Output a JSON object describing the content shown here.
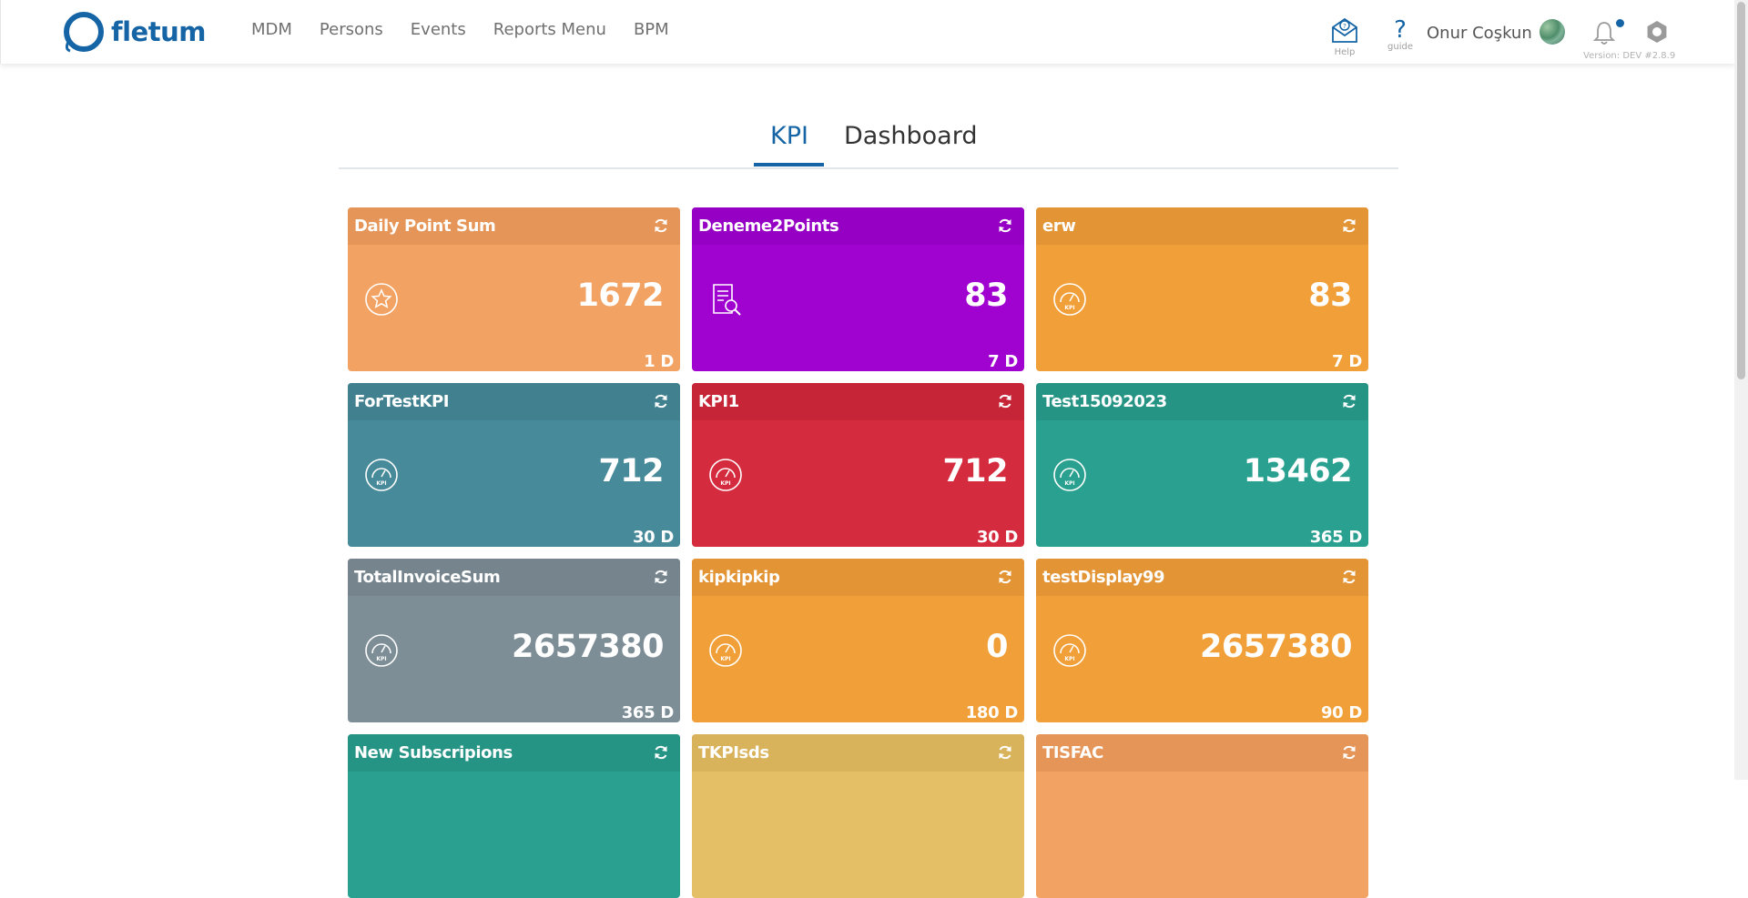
{
  "app": {
    "logo_text": "fletum"
  },
  "menu": [
    {
      "label": "MDM"
    },
    {
      "label": "Persons"
    },
    {
      "label": "Events"
    },
    {
      "label": "Reports Menu"
    },
    {
      "label": "BPM"
    }
  ],
  "tools": {
    "help_caption": "Help",
    "guide_glyph": "?",
    "guide_caption": "guide",
    "user_name": "Onur Coşkun",
    "version": "Version: DEV #2.8.9",
    "icons": [
      "mail-help-icon",
      "question-icon",
      "avatar",
      "bell-icon",
      "settings-icon"
    ],
    "notification_dot_color": "#1565a6"
  },
  "tabs": [
    {
      "label": "KPI",
      "active": true
    },
    {
      "label": "Dashboard",
      "active": false
    }
  ],
  "accent_color": "#1565a6",
  "cards": [
    {
      "title": "Daily Point Sum",
      "value": "1672",
      "period": "1 D",
      "color": "#f2a262",
      "icon": "star-icon"
    },
    {
      "title": "Deneme2Points",
      "value": "83",
      "period": "7 D",
      "color": "#a003d0",
      "icon": "document-search-icon"
    },
    {
      "title": "erw",
      "value": "83",
      "period": "7 D",
      "color": "#f1a039",
      "icon": "kpi-gauge-icon"
    },
    {
      "title": "ForTestKPI",
      "value": "712",
      "period": "30 D",
      "color": "#478a9a",
      "icon": "kpi-gauge-icon"
    },
    {
      "title": "KPI1",
      "value": "712",
      "period": "30 D",
      "color": "#d42b3e",
      "icon": "kpi-gauge-icon"
    },
    {
      "title": "Test15092023",
      "value": "13462",
      "period": "365 D",
      "color": "#2aa190",
      "icon": "kpi-gauge-icon"
    },
    {
      "title": "TotalInvoiceSum",
      "value": "2657380",
      "period": "365 D",
      "color": "#7e8e97",
      "icon": "kpi-gauge-icon"
    },
    {
      "title": "kipkipkip",
      "value": "0",
      "period": "180 D",
      "color": "#f1a039",
      "icon": "kpi-gauge-icon"
    },
    {
      "title": "testDisplay99",
      "value": "2657380",
      "period": "90 D",
      "color": "#f1a039",
      "icon": "kpi-gauge-icon"
    },
    {
      "title": "New Subscripions",
      "value": "",
      "period": "",
      "color": "#2aa190",
      "icon": ""
    },
    {
      "title": "TKPIsds",
      "value": "",
      "period": "",
      "color": "#e5bf65",
      "icon": ""
    },
    {
      "title": "TISFAC",
      "value": "",
      "period": "",
      "color": "#f2a262",
      "icon": ""
    }
  ]
}
